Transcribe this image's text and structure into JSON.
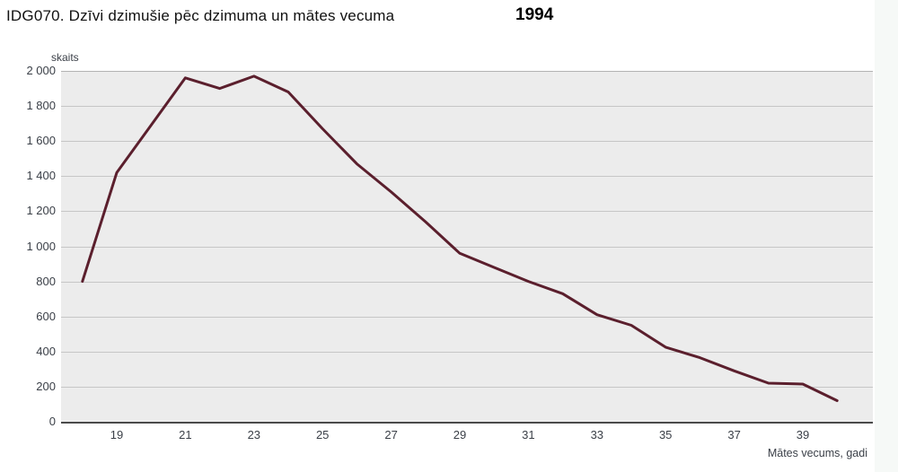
{
  "header": {
    "title": "IDG070. Dzīvi dzimušie pēc dzimuma un mātes vecuma",
    "year": "1994"
  },
  "chart_data": {
    "type": "line",
    "title": "IDG070. Dzīvi dzimušie pēc dzimuma un mātes vecuma",
    "year": "1994",
    "xlabel": "Mātes vecums, gadi",
    "ylabel": "skaits",
    "x": [
      18,
      19,
      20,
      21,
      22,
      23,
      24,
      25,
      26,
      27,
      28,
      29,
      30,
      31,
      32,
      33,
      34,
      35,
      36,
      37,
      38,
      39,
      40
    ],
    "values": [
      800,
      1420,
      1690,
      1960,
      1900,
      1970,
      1880,
      1670,
      1470,
      1310,
      1140,
      960,
      880,
      800,
      730,
      610,
      550,
      425,
      365,
      290,
      220,
      215,
      120
    ],
    "xlim": [
      17.4,
      41
    ],
    "ylim": [
      0,
      2000
    ],
    "y_tick_values": [
      2000,
      1800,
      1600,
      1400,
      1200,
      1000,
      800,
      600,
      400,
      200,
      0
    ],
    "y_tick_labels": [
      "2 000",
      "1 800",
      "1 600",
      "1 400",
      "1 200",
      "1 000",
      "800",
      "600",
      "400",
      "200",
      "0"
    ],
    "x_tick_values": [
      19,
      21,
      23,
      25,
      27,
      29,
      31,
      33,
      35,
      37,
      39
    ],
    "x_tick_labels": [
      "19",
      "21",
      "23",
      "25",
      "27",
      "29",
      "31",
      "33",
      "35",
      "37",
      "39"
    ],
    "grid": "horizontal",
    "legend": "none",
    "line_color": "#5b1f2d",
    "plot_bg_color": "#ececec",
    "grid_color": "#c6c6c6",
    "axis_line_color": "#4a4a4a",
    "label_color": "#3a3f47"
  }
}
